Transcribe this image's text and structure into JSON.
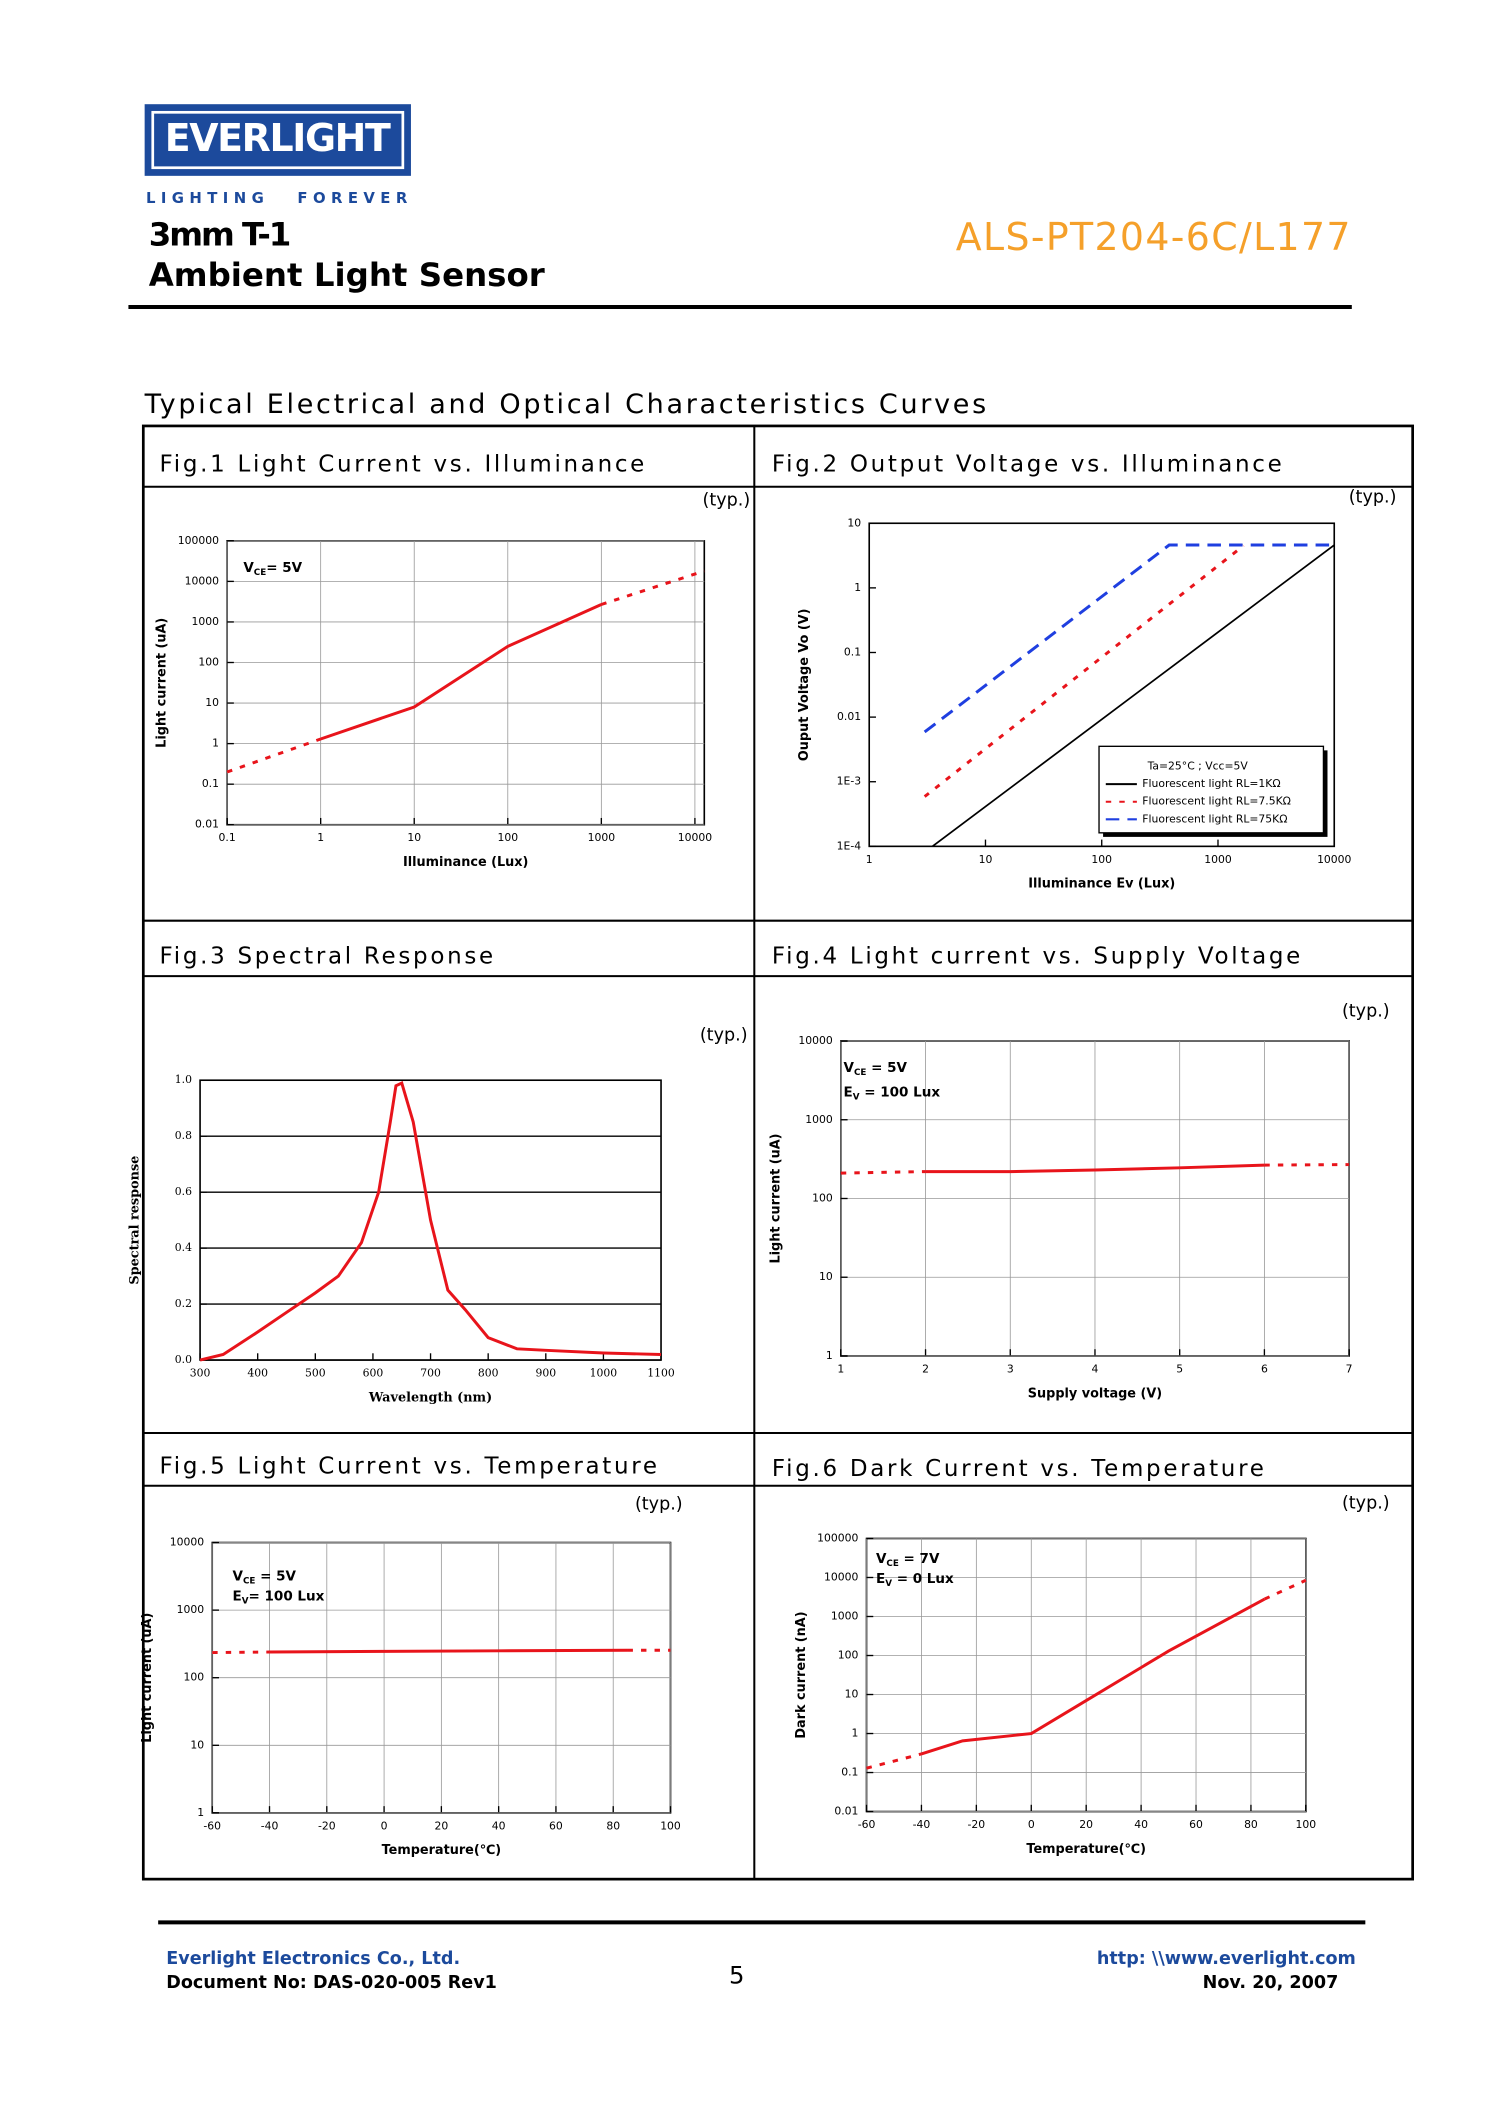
{
  "header": {
    "logo": "EVERLIGHT",
    "tagline_1": "LIGHTING",
    "tagline_2": "FOREVER",
    "product_line": "3mm T-1",
    "product_name": "Ambient Light Sensor",
    "part_number": "ALS-PT204-6C/L177"
  },
  "section_title": "Typical Electrical and Optical Characteristics Curves",
  "chart_data": [
    {
      "type": "line",
      "title": "Fig.1   Light Current vs. Illuminance",
      "note": "(typ.)",
      "x_label": "Illuminance (Lux)",
      "y_label": "Light current (uA)",
      "xlog": true,
      "ylog": true,
      "grid": true,
      "xlim": [
        0.1,
        12600
      ],
      "ylim": [
        0.01,
        100000
      ],
      "xticks": [
        0.1,
        1,
        10,
        100,
        1000,
        10000
      ],
      "yticks": [
        0.01,
        0.1,
        1,
        10,
        100,
        1000,
        10000,
        100000
      ],
      "annotations": [
        {
          "text": "V",
          "sub": "CE",
          "rest": "= 5V"
        }
      ],
      "series": [
        {
          "color": "#e8141b",
          "dash": "dotted",
          "x": [
            0.1,
            1
          ],
          "values": [
            0.2,
            1.3
          ]
        },
        {
          "color": "#e8141b",
          "dash": "solid",
          "x": [
            1,
            10,
            100,
            1000
          ],
          "values": [
            1.3,
            8,
            250,
            2700
          ]
        },
        {
          "color": "#e8141b",
          "dash": "dotted",
          "x": [
            1000,
            12600
          ],
          "values": [
            2700,
            18000
          ]
        }
      ]
    },
    {
      "type": "line",
      "title": "Fig.2   Output Voltage vs. Illuminance",
      "note": "(typ.)",
      "x_label": "Illuminance Ev (Lux)",
      "y_label": "Ouput Voltage Vo (V)",
      "xlog": true,
      "ylog": true,
      "grid": false,
      "xlim": [
        1,
        10000
      ],
      "ylim": [
        0.0001,
        10
      ],
      "xticks": [
        1,
        10,
        100,
        1000,
        10000
      ],
      "yticks": [
        {
          "value": 0.0001,
          "label": "1E-4"
        },
        {
          "value": 0.001,
          "label": "1E-3"
        },
        0.01,
        0.1,
        1,
        10
      ],
      "legend": "lower right",
      "legend_title": "Ta=25°C ; Vcc=5V",
      "series": [
        {
          "name": "Fluorescent light  RL=1KΩ",
          "color": "#000000",
          "dash": "solid",
          "x": [
            3.5,
            10000
          ],
          "values": [
            0.0001,
            4.6
          ]
        },
        {
          "name": "Fluorescent light  RL=7.5KΩ",
          "color": "#e8141b",
          "dash": "dotted",
          "x": [
            3,
            1660
          ],
          "values": [
            0.00059,
            4.5
          ]
        },
        {
          "name": "Fluorescent light  RL=75KΩ",
          "color": "#1f3fe0",
          "dash": "dashed",
          "x": [
            3,
            380,
            10000
          ],
          "values": [
            0.0059,
            4.6,
            4.6
          ]
        }
      ]
    },
    {
      "type": "line",
      "title": "Fig.3   Spectral Response",
      "note": "(typ.)",
      "x_label": "Wavelength (nm)",
      "y_label": "Spectral response",
      "xlog": false,
      "ylog": false,
      "grid": "y",
      "xlim": [
        300,
        1100
      ],
      "ylim": [
        0,
        1
      ],
      "xticks": [
        300,
        400,
        500,
        600,
        700,
        800,
        900,
        1000,
        1100
      ],
      "yticks": [
        {
          "value": 0,
          "label": "0.0"
        },
        0.2,
        0.4,
        0.6,
        0.8,
        {
          "value": 1,
          "label": "1.0"
        }
      ],
      "series": [
        {
          "color": "#e8141b",
          "dash": "solid",
          "x": [
            300,
            340,
            400,
            450,
            500,
            540,
            580,
            610,
            630,
            640,
            650,
            670,
            700,
            730,
            760,
            800,
            850,
            900,
            1000,
            1100
          ],
          "values": [
            0,
            0.02,
            0.1,
            0.17,
            0.24,
            0.3,
            0.42,
            0.6,
            0.85,
            0.98,
            0.99,
            0.85,
            0.5,
            0.25,
            0.18,
            0.08,
            0.04,
            0.035,
            0.025,
            0.02
          ]
        }
      ]
    },
    {
      "type": "line",
      "title": "Fig.4   Light current vs. Supply Voltage",
      "note": "(typ.)",
      "x_label": "Supply voltage (V)",
      "y_label": "Light current (uA)",
      "xlog": false,
      "ylog": true,
      "grid": true,
      "xlim": [
        1,
        7
      ],
      "ylim": [
        1,
        10000
      ],
      "xticks": [
        1,
        2,
        3,
        4,
        5,
        6,
        7
      ],
      "yticks": [
        1,
        10,
        100,
        1000,
        10000
      ],
      "annotations": [
        {
          "text": "V",
          "sub": "CE",
          "rest": " = 5V"
        },
        {
          "text": "E",
          "sub": "V",
          "rest": " = 100 Lux"
        }
      ],
      "series": [
        {
          "color": "#e8141b",
          "dash": "dotted",
          "x": [
            1,
            2
          ],
          "values": [
            210,
            220
          ]
        },
        {
          "color": "#e8141b",
          "dash": "solid",
          "x": [
            2,
            3,
            4,
            5,
            6
          ],
          "values": [
            220,
            220,
            230,
            245,
            265
          ]
        },
        {
          "color": "#e8141b",
          "dash": "dotted",
          "x": [
            6,
            7
          ],
          "values": [
            265,
            270
          ]
        }
      ]
    },
    {
      "type": "line",
      "title": "Fig.5   Light Current vs. Temperature",
      "note": "(typ.)",
      "x_label": "Temperature(℃)",
      "y_label": "Light current (uA)",
      "xlog": false,
      "ylog": true,
      "grid": true,
      "xlim": [
        -60,
        100
      ],
      "ylim": [
        1,
        10000
      ],
      "xticks": [
        -60,
        -40,
        -20,
        0,
        20,
        40,
        60,
        80,
        100
      ],
      "yticks": [
        1,
        10,
        100,
        1000,
        10000
      ],
      "annotations": [
        {
          "text": "V",
          "sub": "CE",
          "rest": " = 5V"
        },
        {
          "text": "E",
          "sub": "V",
          "rest": "= 100 Lux"
        }
      ],
      "series": [
        {
          "color": "#e8141b",
          "dash": "dotted",
          "x": [
            -60,
            -40
          ],
          "values": [
            235,
            240
          ]
        },
        {
          "color": "#e8141b",
          "dash": "solid",
          "x": [
            -40,
            0,
            40,
            85
          ],
          "values": [
            240,
            245,
            250,
            255
          ]
        },
        {
          "color": "#e8141b",
          "dash": "dotted",
          "x": [
            85,
            100
          ],
          "values": [
            255,
            255
          ]
        }
      ]
    },
    {
      "type": "line",
      "title": "Fig.6   Dark Current vs. Temperature",
      "note": "(typ.)",
      "x_label": "Temperature(℃)",
      "y_label": "Dark current (nA)",
      "xlog": false,
      "ylog": true,
      "grid": true,
      "xlim": [
        -60,
        100
      ],
      "ylim": [
        0.01,
        100000
      ],
      "xticks": [
        -60,
        -40,
        -20,
        0,
        20,
        40,
        60,
        80,
        100
      ],
      "yticks": [
        0.01,
        0.1,
        1,
        10,
        100,
        1000,
        10000,
        100000
      ],
      "annotations": [
        {
          "text": "V",
          "sub": "CE",
          "rest": " = 7V"
        },
        {
          "text": "E",
          "sub": "V",
          "rest": " = 0 Lux"
        }
      ],
      "series": [
        {
          "color": "#e8141b",
          "dash": "dotted",
          "x": [
            -60,
            -40
          ],
          "values": [
            0.13,
            0.3
          ]
        },
        {
          "color": "#e8141b",
          "dash": "solid",
          "x": [
            -40,
            -25,
            0,
            20,
            50,
            85
          ],
          "values": [
            0.3,
            0.65,
            1,
            7,
            130,
            2800
          ]
        },
        {
          "color": "#e8141b",
          "dash": "dotted",
          "x": [
            85,
            100
          ],
          "values": [
            2800,
            8500
          ]
        }
      ]
    }
  ],
  "footer": {
    "company": "Everlight Electronics Co., Ltd.",
    "document_no": "Document No: DAS-020-005 Rev1",
    "page": 5,
    "website": "http: \\\\www.everlight.com",
    "date": "Nov. 20, 2007"
  }
}
